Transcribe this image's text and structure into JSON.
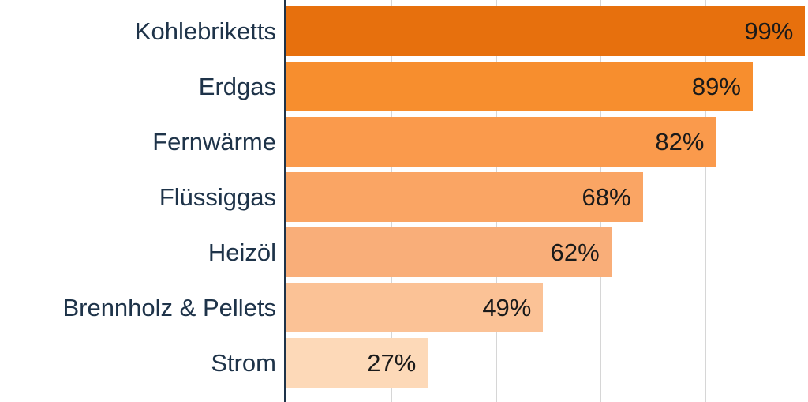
{
  "chart_data": {
    "type": "bar",
    "orientation": "horizontal",
    "categories": [
      "Kohlebriketts",
      "Erdgas",
      "Fernwärme",
      "Flüssiggas",
      "Heizöl",
      "Brennholz & Pellets",
      "Strom"
    ],
    "values": [
      99,
      89,
      82,
      68,
      62,
      49,
      27
    ],
    "value_labels": [
      "99%",
      "89%",
      "82%",
      "68%",
      "62%",
      "49%",
      "27%"
    ],
    "bar_colors": [
      "#E7700D",
      "#F78E2E",
      "#FA9A4C",
      "#FAA564",
      "#F9AE79",
      "#FBC296",
      "#FDD9B8"
    ],
    "title": "",
    "xlabel": "",
    "ylabel": "",
    "xlim": [
      0,
      100
    ],
    "grid": "vertical",
    "gridline_percents": [
      20,
      40,
      60,
      80,
      100
    ],
    "legend": "none"
  },
  "colors": {
    "background": "#FFFFFF",
    "axis_line": "#1E3349",
    "category_label": "#1E3349",
    "value_label": "#1A1A1A",
    "gridline": "#D6D6D6"
  }
}
